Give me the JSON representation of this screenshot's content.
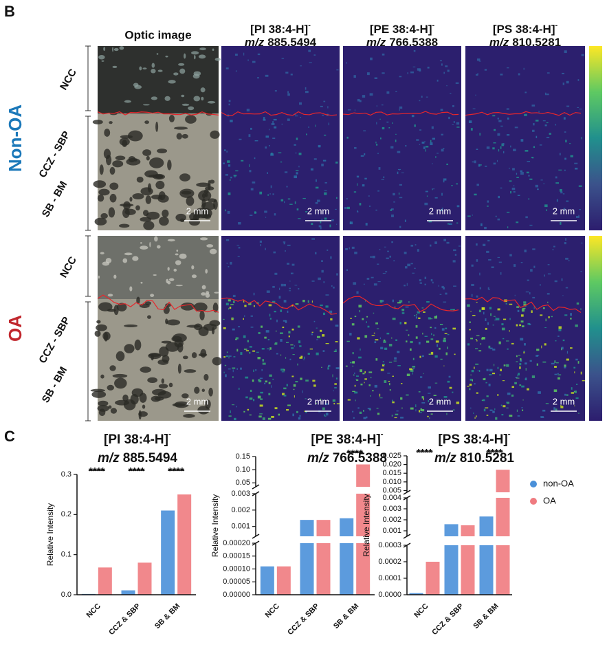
{
  "panel_b": {
    "label": "B",
    "columns": [
      {
        "title": "Optic image"
      },
      {
        "title": "[PI 38:4-H]",
        "superscript": "-",
        "mz_prefix": "m/z",
        "mz": "885.5494"
      },
      {
        "title": "[PE 38:4-H]",
        "superscript": "-",
        "mz_prefix": "m/z",
        "mz": "766.5388"
      },
      {
        "title": "[PS 38:4-H]",
        "superscript": "-",
        "mz_prefix": "m/z",
        "mz": "810.5281"
      }
    ],
    "rows": [
      {
        "label": "Non-OA",
        "color": "#1b78b9",
        "zones": [
          "NCC",
          "CCZ - SBP",
          "SB - BM"
        ]
      },
      {
        "label": "OA",
        "color": "#c1272d",
        "zones": [
          "NCC",
          "CCZ - SBP",
          "SB - BM"
        ]
      }
    ],
    "scale_bar": "2 mm"
  },
  "panel_c": {
    "label": "C"
  },
  "chart_data": [
    {
      "type": "bar",
      "title": "[PI 38:4-H]",
      "title_superscript": "-",
      "subtitle_prefix": "m/z",
      "subtitle": "885.5494",
      "y_label": "Relative Intensity",
      "categories": [
        "NCC",
        "CCZ & SBP",
        "SB & BM"
      ],
      "series": [
        {
          "name": "non-OA",
          "color": "#4a90d9",
          "values": [
            0.002,
            0.011,
            0.21
          ]
        },
        {
          "name": "OA",
          "color": "#ef7b80",
          "values": [
            0.068,
            0.08,
            0.25
          ]
        }
      ],
      "significance": [
        "****",
        "****",
        "****"
      ],
      "y_segments": [
        {
          "ylim": [
            0,
            0.3
          ],
          "yticks": [
            {
              "value": 0,
              "label": "0.0"
            },
            0.1,
            0.2,
            0.3
          ]
        }
      ]
    },
    {
      "type": "bar",
      "title": "[PE 38:4-H]",
      "title_superscript": "-",
      "subtitle_prefix": "m/z",
      "subtitle": "766.5388",
      "y_label": "Relative Intensity",
      "categories": [
        "NCC",
        "CCZ & SBP",
        "SB & BM"
      ],
      "series": [
        {
          "name": "non-OA",
          "color": "#4a90d9",
          "values": [
            0.00011,
            0.0014,
            0.0015
          ]
        },
        {
          "name": "OA",
          "color": "#ef7b80",
          "values": [
            0.00011,
            0.0014,
            0.12
          ]
        }
      ],
      "significance": [
        null,
        null,
        "****"
      ],
      "y_segments": [
        {
          "ylim": [
            0,
            0.0002
          ],
          "yticks": [
            {
              "value": 0,
              "label": "0.00000"
            },
            {
              "value": 5e-05,
              "label": "0.00005"
            },
            {
              "value": 0.0001,
              "label": "0.00010"
            },
            {
              "value": 0.00015,
              "label": "0.00015"
            },
            {
              "value": 0.0002,
              "label": "0.00020"
            }
          ]
        },
        {
          "ylim": [
            0.0004,
            0.003
          ],
          "yticks": [
            0.001,
            0.002,
            0.003
          ]
        },
        {
          "ylim": [
            0.035,
            0.15
          ],
          "yticks": [
            0.05,
            {
              "value": 0.1,
              "label": "0.10"
            },
            0.15
          ]
        }
      ]
    },
    {
      "type": "bar",
      "title": "[PS 38:4-H]",
      "title_superscript": "-",
      "subtitle_prefix": "m/z",
      "subtitle": "810.5281",
      "y_label": "Relative Intensity",
      "categories": [
        "NCC",
        "CCZ & SBP",
        "SB & BM"
      ],
      "series": [
        {
          "name": "non-OA",
          "color": "#4a90d9",
          "values": [
            1e-05,
            0.0016,
            0.0023
          ]
        },
        {
          "name": "OA",
          "color": "#ef7b80",
          "values": [
            0.0002,
            0.0015,
            0.017
          ]
        }
      ],
      "significance": [
        "****",
        null,
        "****"
      ],
      "legend": "upper right",
      "y_segments": [
        {
          "ylim": [
            0,
            0.0003
          ],
          "yticks": [
            {
              "value": 0,
              "label": "0.0000"
            },
            0.0001,
            0.0002,
            0.0003
          ]
        },
        {
          "ylim": [
            0.0005,
            0.004
          ],
          "yticks": [
            0.001,
            0.002,
            0.003,
            0.004
          ]
        },
        {
          "ylim": [
            0.004,
            0.025
          ],
          "yticks": [
            0.005,
            {
              "value": 0.01,
              "label": "0.010"
            },
            0.015,
            {
              "value": 0.02,
              "label": "0.020"
            },
            0.025
          ]
        }
      ]
    }
  ]
}
